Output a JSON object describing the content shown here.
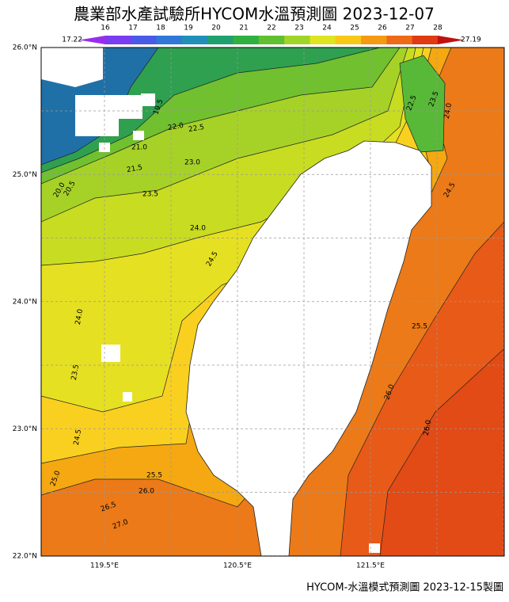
{
  "header": {
    "title": "農業部水產試驗所HYCOM水溫預測圖 2023-12-07"
  },
  "colorbar": {
    "min_label": "17.22",
    "max_label": "27.19",
    "ticks": [
      16,
      17,
      18,
      19,
      20,
      21,
      22,
      23,
      24,
      25,
      26,
      27,
      28
    ],
    "colors": [
      "#9a2cf0",
      "#7a3cf0",
      "#4a5ae8",
      "#2f78d8",
      "#2090b8",
      "#20a070",
      "#30b040",
      "#60c030",
      "#a0d428",
      "#e0e420",
      "#f8c818",
      "#f59a12",
      "#ee6a16",
      "#e03a12",
      "#c01010"
    ]
  },
  "axes": {
    "lat_labels": [
      "26.0°N",
      "25.0°N",
      "24.0°N",
      "23.0°N",
      "22.0°N"
    ],
    "lon_labels": [
      "119.5°E",
      "120.5°E",
      "121.5°E"
    ]
  },
  "contour_labels": [
    "19.5",
    "20.0",
    "20.5",
    "21.0",
    "21.5",
    "22.0",
    "22.5",
    "23.0",
    "23.5",
    "24.0",
    "24.5",
    "24.0",
    "23.5",
    "24.5",
    "25.0",
    "25.5",
    "26.0",
    "26.5",
    "27.0",
    "25.5",
    "26.0",
    "26.0",
    "24.5",
    "22.5",
    "23.5",
    "24.0"
  ],
  "footer": "HYCOM-水溫模式預測圖 2023-12-15製圖"
}
